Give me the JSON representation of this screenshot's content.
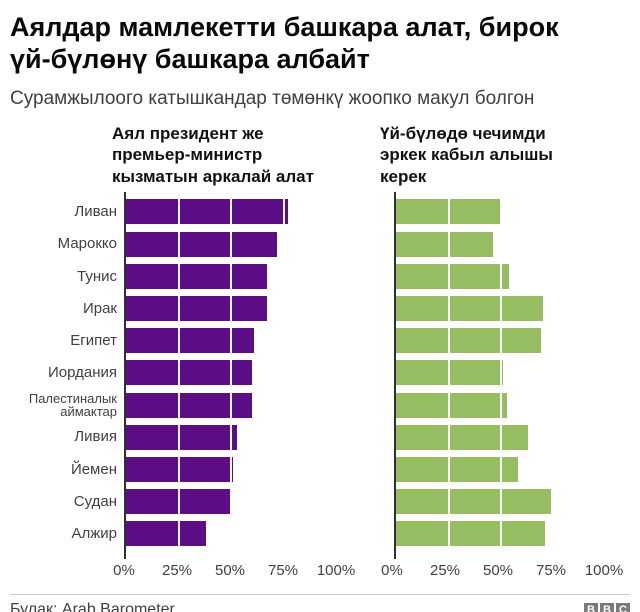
{
  "title": "Аялдар мамлекетти башкара алат, бирок\nүй-бүлөнү башкара албайт",
  "subtitle": "Сурамжылоого катышкандар төмөнкү жоопко макул болгон",
  "headers": {
    "left": "Аял президент же\nпремьер-министр\nкызматын аркалай алат",
    "right": "Үй-бүлөдө чечимди\nэркек кабыл алышы\nкерек"
  },
  "colors": {
    "purple": "#5b0e85",
    "green": "#96bd62",
    "axis": "#303030"
  },
  "chart_data": {
    "type": "bar",
    "orientation": "horizontal",
    "categories": [
      "Ливан",
      "Марокко",
      "Тунис",
      "Ирак",
      "Египет",
      "Иордания",
      "Палестиналык\nаймактар",
      "Ливия",
      "Йемен",
      "Судан",
      "Алжир"
    ],
    "series": [
      {
        "name": "Аял президент же премьер-министр кызматын аркалай алат",
        "color": "#5b0e85",
        "values": [
          77,
          72,
          67,
          67,
          61,
          60,
          60,
          53,
          51,
          50,
          38
        ]
      },
      {
        "name": "Үй-бүлөдө чечимди эркек кабыл алышы керек",
        "color": "#96bd62",
        "values": [
          50,
          46,
          54,
          70,
          69,
          51,
          53,
          63,
          58,
          74,
          71
        ]
      }
    ],
    "xlim": [
      0,
      100
    ],
    "tick_labels": [
      "0%",
      "25%",
      "50%",
      "75%",
      "100%"
    ],
    "tick_positions": [
      0,
      25,
      50,
      75,
      100
    ],
    "gridlines_pct": [
      25,
      50,
      75
    ],
    "grid": "white vertical lines over bars",
    "legend_position": "column headers above each panel"
  },
  "footer": {
    "source": "Булак: Arab Barometer",
    "logo_letters": [
      "B",
      "B",
      "C"
    ]
  }
}
